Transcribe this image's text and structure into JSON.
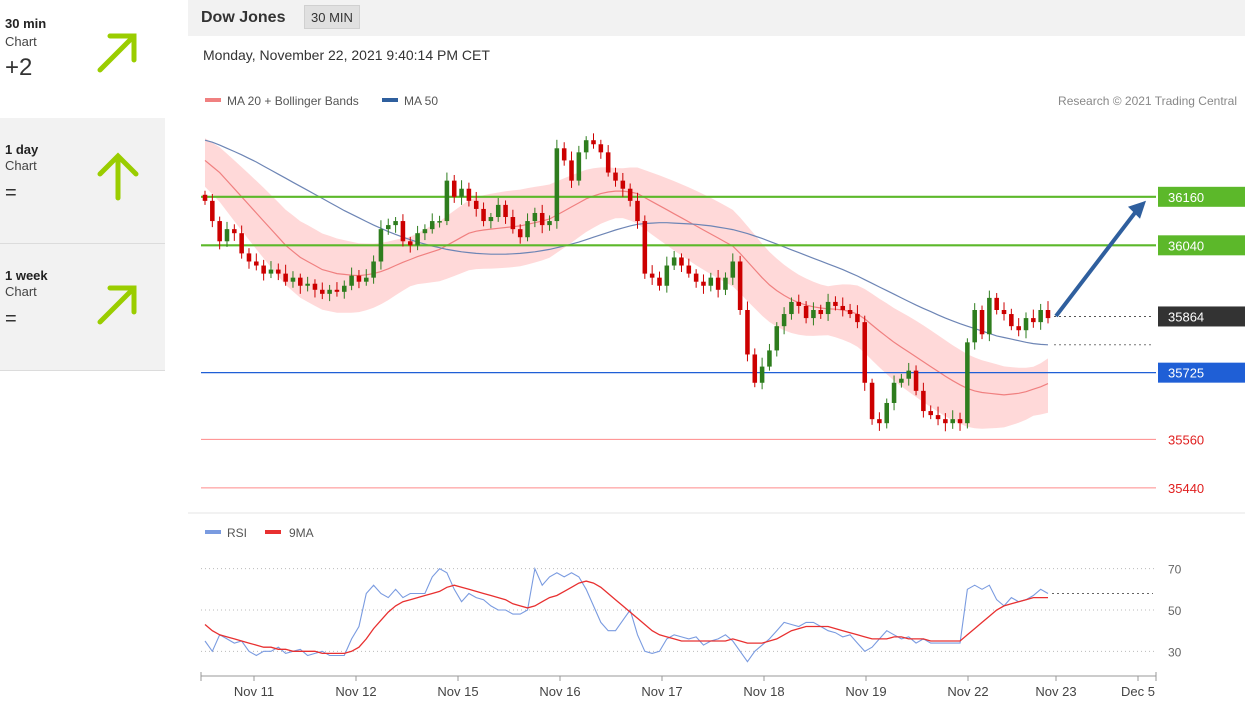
{
  "sidebar": {
    "cards": [
      {
        "title": "30 min",
        "subtitle": "Chart",
        "value": "+2",
        "direction": "up-right"
      },
      {
        "title": "1 day",
        "subtitle": "Chart",
        "value": "=",
        "direction": "up"
      },
      {
        "title": "1 week",
        "subtitle": "Chart",
        "value": "=",
        "direction": "up-right"
      }
    ],
    "arrow_color": "#9acd00"
  },
  "header": {
    "instrument": "Dow Jones",
    "timeframe": "30 MIN",
    "datetime": "Monday, November 22, 2021 9:40:14 PM CET",
    "copyright": "Research © 2021 Trading Central"
  },
  "legend": {
    "ma20": "MA 20 + Bollinger Bands",
    "ma50": "MA 50",
    "rsi": "RSI",
    "rsi_ma": "9MA"
  },
  "colors": {
    "up_candle": "#2e7d1e",
    "down_candle": "#cc0000",
    "ma20": "#f08080",
    "ma50": "#6d85b5",
    "bollinger": "#ffcccc",
    "resistance": "#5cb82a",
    "support": "#1f5fd6",
    "support2": "#ff8a8a",
    "current": "#333333",
    "forecast_arrow": "#2f5f9e",
    "rsi": "#7a9be0",
    "rsi_ma": "#e83030"
  },
  "chart_data": {
    "type": "candlestick",
    "x_labels": [
      "Nov 11",
      "Nov 12",
      "Nov 15",
      "Nov 16",
      "Nov 17",
      "Nov 18",
      "Nov 19",
      "Nov 22",
      "Nov 23",
      "Dec 5"
    ],
    "ylim": [
      35410,
      36350
    ],
    "levels": [
      {
        "value": 36160,
        "label": "36160",
        "kind": "resistance"
      },
      {
        "value": 36040,
        "label": "36040",
        "kind": "resistance"
      },
      {
        "value": 35864,
        "label": "35864",
        "kind": "current"
      },
      {
        "value": 35725,
        "label": "35725",
        "kind": "support"
      },
      {
        "value": 35560,
        "label": "35560",
        "kind": "support2"
      },
      {
        "value": 35440,
        "label": "35440",
        "kind": "support2"
      }
    ],
    "forecast_target": 36160,
    "candles_close": [
      36150,
      36100,
      36050,
      36080,
      36070,
      36020,
      36000,
      35990,
      35970,
      35980,
      35970,
      35950,
      35960,
      35940,
      35945,
      35930,
      35920,
      35930,
      35925,
      35940,
      35965,
      35950,
      35960,
      36000,
      36080,
      36090,
      36100,
      36050,
      36040,
      36070,
      36080,
      36100,
      36100,
      36200,
      36160,
      36180,
      36150,
      36130,
      36100,
      36110,
      36140,
      36110,
      36080,
      36060,
      36100,
      36120,
      36090,
      36100,
      36280,
      36250,
      36200,
      36270,
      36300,
      36290,
      36270,
      36220,
      36200,
      36180,
      36150,
      36100,
      35970,
      35960,
      35940,
      35990,
      36010,
      35990,
      35970,
      35950,
      35940,
      35960,
      35930,
      35960,
      36000,
      35880,
      35770,
      35700,
      35740,
      35780,
      35840,
      35870,
      35900,
      35890,
      35860,
      35880,
      35870,
      35900,
      35890,
      35880,
      35870,
      35850,
      35700,
      35610,
      35600,
      35650,
      35700,
      35710,
      35730,
      35680,
      35630,
      35620,
      35610,
      35600,
      35610,
      35600,
      35800,
      35880,
      35820,
      35910,
      35880,
      35870,
      35840,
      35830,
      35860,
      35850,
      35880,
      35860
    ],
    "ma20": [
      36250,
      36235,
      36220,
      36200,
      36180,
      36160,
      36140,
      36120,
      36100,
      36080,
      36060,
      36040,
      36025,
      36010,
      36000,
      35990,
      35980,
      35975,
      35970,
      35968,
      35966,
      35965,
      35967,
      35970,
      35975,
      35982,
      35990,
      35998,
      36005,
      36012,
      36018,
      36024,
      36030,
      36040,
      36050,
      36060,
      36070,
      36075,
      36078,
      36080,
      36082,
      36084,
      36086,
      36088,
      36092,
      36096,
      36100,
      36105,
      36115,
      36125,
      36135,
      36145,
      36155,
      36162,
      36168,
      36172,
      36174,
      36174,
      36172,
      36168,
      36158,
      36148,
      36138,
      36128,
      36118,
      36108,
      36098,
      36088,
      36078,
      36068,
      36058,
      36048,
      36038,
      36020,
      36000,
      35980,
      35960,
      35942,
      35928,
      35916,
      35906,
      35898,
      35892,
      35888,
      35885,
      35883,
      35882,
      35880,
      35876,
      35870,
      35858,
      35843,
      35828,
      35814,
      35800,
      35788,
      35776,
      35764,
      35752,
      35740,
      35728,
      35716,
      35705,
      35695,
      35686,
      35680,
      35676,
      35674,
      35672,
      35670,
      35672,
      35674,
      35678,
      35684,
      35690,
      35698
    ],
    "ma50": [
      36300,
      36295,
      36288,
      36280,
      36272,
      36264,
      36255,
      36246,
      36236,
      36226,
      36216,
      36206,
      36196,
      36186,
      36176,
      36166,
      36156,
      36146,
      36136,
      36126,
      36117,
      36108,
      36099,
      36090,
      36082,
      36074,
      36067,
      36060,
      36054,
      36048,
      36043,
      36038,
      36034,
      36030,
      36027,
      36024,
      36022,
      36020,
      36019,
      36018,
      36018,
      36018,
      36019,
      36020,
      36022,
      36024,
      36027,
      36030,
      36034,
      36038,
      36043,
      36048,
      36054,
      36060,
      36066,
      36072,
      36078,
      36083,
      36088,
      36092,
      36094,
      36095,
      36096,
      36096,
      36095,
      36094,
      36093,
      36092,
      36090,
      36088,
      36085,
      36082,
      36079,
      36074,
      36069,
      36063,
      36057,
      36050,
      36043,
      36036,
      36029,
      36022,
      36015,
      36008,
      36001,
      35994,
      35987,
      35980,
      35972,
      35964,
      35955,
      35946,
      35937,
      35928,
      35919,
      35910,
      35901,
      35892,
      35884,
      35876,
      35868,
      35860,
      35853,
      35846,
      35840,
      35834,
      35828,
      35822,
      35816,
      35812,
      35808,
      35804,
      35800,
      35797,
      35795,
      35794
    ],
    "rsi": [
      35,
      30,
      38,
      36,
      34,
      35,
      30,
      28,
      30,
      30,
      32,
      29,
      30,
      31,
      28,
      29,
      30,
      28,
      28,
      28,
      36,
      42,
      58,
      62,
      58,
      56,
      60,
      56,
      58,
      58,
      58,
      66,
      70,
      68,
      60,
      54,
      58,
      56,
      55,
      52,
      50,
      50,
      48,
      48,
      50,
      70,
      62,
      66,
      68,
      66,
      68,
      66,
      60,
      52,
      44,
      40,
      40,
      45,
      50,
      38,
      30,
      29,
      30,
      36,
      38,
      37,
      36,
      37,
      33,
      35,
      36,
      38,
      35,
      30,
      25,
      30,
      33,
      36,
      40,
      44,
      43,
      42,
      44,
      44,
      42,
      40,
      39,
      37,
      38,
      34,
      30,
      32,
      36,
      40,
      38,
      36,
      37,
      34,
      36,
      34,
      34,
      34,
      34,
      34,
      60,
      62,
      60,
      62,
      55,
      52,
      56,
      54,
      55,
      57,
      60,
      58
    ],
    "rsi_ma": [
      43,
      40,
      38,
      37,
      36,
      35,
      34,
      33,
      32,
      32,
      31,
      31,
      30,
      30,
      30,
      30,
      29,
      29,
      29,
      29,
      30,
      32,
      36,
      41,
      45,
      49,
      52,
      54,
      55,
      56,
      57,
      58,
      59,
      61,
      62,
      61,
      60,
      59,
      58,
      57,
      56,
      55,
      53,
      52,
      51,
      52,
      54,
      56,
      57,
      59,
      61,
      63,
      64,
      63,
      61,
      58,
      55,
      52,
      49,
      46,
      43,
      40,
      38,
      37,
      36,
      35,
      35,
      35,
      35,
      35,
      35,
      35,
      36,
      35,
      34,
      34,
      34,
      35,
      36,
      38,
      40,
      41,
      42,
      42,
      42,
      42,
      41,
      40,
      39,
      38,
      37,
      36,
      36,
      36,
      37,
      37,
      36,
      36,
      36,
      35,
      35,
      35,
      35,
      35,
      38,
      41,
      44,
      47,
      50,
      52,
      53,
      54,
      55,
      56,
      56,
      56
    ],
    "rsi_levels": [
      70,
      50,
      30
    ]
  }
}
